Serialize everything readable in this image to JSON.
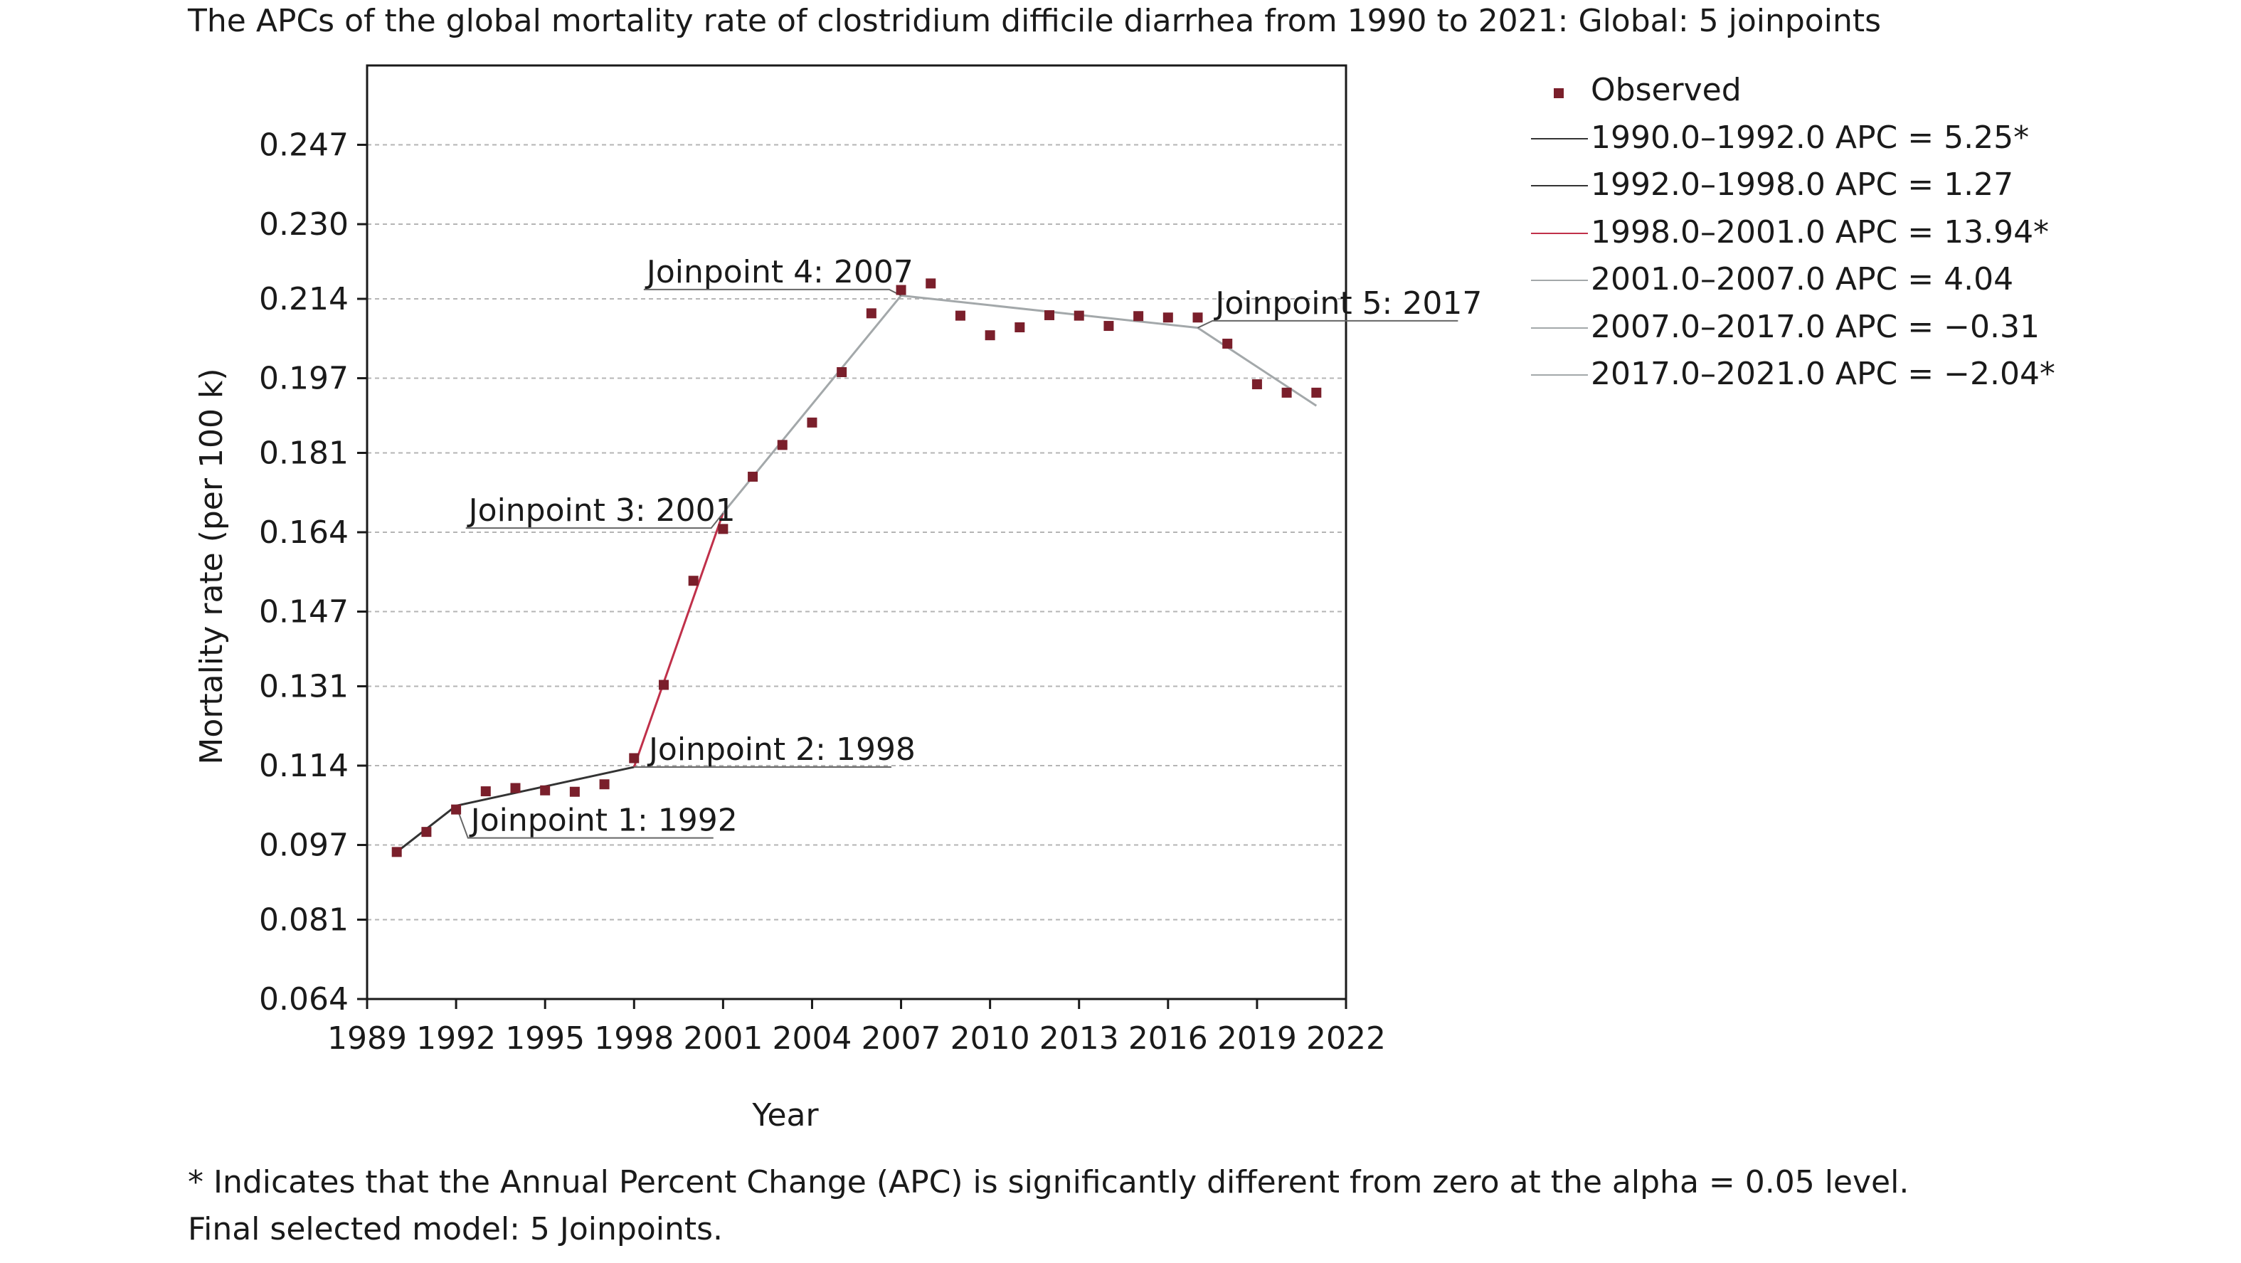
{
  "title": "The APCs of the global mortality rate of clostridium difficile diarrhea from 1990 to 2021: Global: 5 joinpoints",
  "footnote_1": "* Indicates that the Annual Percent Change (APC) is significantly different from zero at the alpha = 0.05 level.",
  "footnote_2": "Final selected model: 5 Joinpoints.",
  "colors": {
    "observed_marker": "#7a1f2b",
    "segment_dark": "#333333",
    "segment_red": "#c0304a",
    "segment_gray": "#a3a8aa",
    "grid": "#b5b5b5"
  },
  "chart_data": {
    "type": "line",
    "title": "The APCs of the global mortality rate of clostridium difficile diarrhea from 1990 to 2021: Global: 5 joinpoints",
    "xlabel": "Year",
    "ylabel": "Mortality rate (per 100 k)",
    "xlim": [
      1989,
      2022
    ],
    "ylim": [
      0.064,
      0.264
    ],
    "xticks": [
      1989,
      1992,
      1995,
      1998,
      2001,
      2004,
      2007,
      2010,
      2013,
      2016,
      2019,
      2022
    ],
    "yticks": [
      "0.064",
      "0.081",
      "0.097",
      "0.114",
      "0.131",
      "0.147",
      "0.164",
      "0.181",
      "0.197",
      "0.214",
      "0.230",
      "0.247"
    ],
    "grid": "horizontal dashed",
    "legend_position": "right",
    "observed": {
      "name": "Observed",
      "x": [
        1990,
        1991,
        1992,
        1993,
        1994,
        1995,
        1996,
        1997,
        1998,
        1999,
        2000,
        2001,
        2002,
        2003,
        2004,
        2005,
        2006,
        2007,
        2008,
        2009,
        2010,
        2011,
        2012,
        2013,
        2014,
        2015,
        2016,
        2017,
        2018,
        2019,
        2020,
        2021
      ],
      "y": [
        0.0955,
        0.0998,
        0.1046,
        0.1085,
        0.1092,
        0.1087,
        0.1084,
        0.11,
        0.1156,
        0.1313,
        0.1536,
        0.1647,
        0.1759,
        0.1827,
        0.1875,
        0.1983,
        0.2109,
        0.2159,
        0.2173,
        0.2104,
        0.2062,
        0.2079,
        0.2105,
        0.2104,
        0.2082,
        0.2103,
        0.21,
        0.21,
        0.2044,
        0.1957,
        0.1939,
        0.1939
      ]
    },
    "series": [
      {
        "name": "1990.0–1992.0 APC = 5.25*",
        "x": [
          1990,
          1992
        ],
        "y": [
          0.0955,
          0.1054
        ],
        "color": "#333333"
      },
      {
        "name": "1992.0–1998.0 APC = 1.27",
        "x": [
          1992,
          1998
        ],
        "y": [
          0.1054,
          0.1137
        ],
        "color": "#333333"
      },
      {
        "name": "1998.0–2001.0 APC = 13.94*",
        "x": [
          1998,
          2001
        ],
        "y": [
          0.1137,
          0.1681
        ],
        "color": "#c0304a"
      },
      {
        "name": "2001.0–2007.0 APC = 4.04",
        "x": [
          2001,
          2007
        ],
        "y": [
          0.1681,
          0.2147
        ],
        "color": "#a3a8aa"
      },
      {
        "name": "2007.0–2017.0 APC = −0.31",
        "x": [
          2007,
          2017
        ],
        "y": [
          0.2147,
          0.2078
        ],
        "color": "#a3a8aa"
      },
      {
        "name": "2017.0–2021.0 APC = −2.04*",
        "x": [
          2017,
          2021
        ],
        "y": [
          0.2078,
          0.1911
        ],
        "color": "#a3a8aa"
      }
    ],
    "annotations": [
      {
        "text": "Joinpoint 1: 1992",
        "x": 1992,
        "y": 0.1054,
        "label_x": 1992.4,
        "label_y": 0.0985,
        "anchor": "bottom-left"
      },
      {
        "text": "Joinpoint 2: 1998",
        "x": 1998,
        "y": 0.1137,
        "label_x": 1998.4,
        "label_y": 0.1137,
        "anchor": "bottom-left"
      },
      {
        "text": "Joinpoint 3: 2001",
        "x": 2001,
        "y": 0.1681,
        "label_x": 2000.6,
        "label_y": 0.1649,
        "anchor": "bottom-right"
      },
      {
        "text": "Joinpoint 4: 2007",
        "x": 2007,
        "y": 0.2147,
        "label_x": 2006.6,
        "label_y": 0.216,
        "anchor": "bottom-right"
      },
      {
        "text": "Joinpoint 5: 2017",
        "x": 2017,
        "y": 0.2078,
        "label_x": 2017.5,
        "label_y": 0.2093,
        "anchor": "bottom-left"
      }
    ]
  }
}
